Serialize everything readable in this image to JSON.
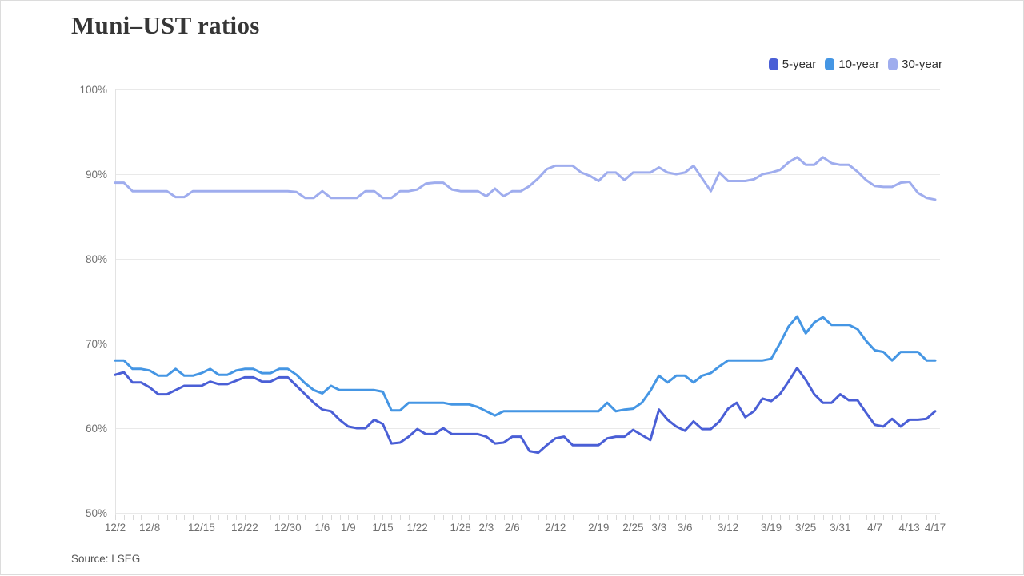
{
  "header": {
    "title": "Muni–UST ratios"
  },
  "footer": {
    "source": "Source: LSEG"
  },
  "colors": {
    "background": "#ffffff",
    "border": "#dcdcdc",
    "grid": "#e9e9e9",
    "axis_line": "#e3e3e3",
    "tick": "#d9d9d9",
    "axis_text": "#6f6f6f",
    "title_text": "#363636",
    "legend_text": "#2f2f2f",
    "source_text": "#565656",
    "series_5yr": "#4a5fd6",
    "series_10yr": "#4596e4",
    "series_30yr": "#9fadee"
  },
  "chart_data": {
    "type": "line",
    "title": "Muni–UST ratios",
    "xlabel": "",
    "ylabel": "",
    "ylim": [
      50,
      100
    ],
    "ytick_values": [
      50,
      60,
      70,
      80,
      90,
      100
    ],
    "ytick_suffix": "%",
    "grid": "horizontal",
    "legend_position": "top-right",
    "x_tick_labels": [
      "12/2",
      "12/8",
      "12/15",
      "12/22",
      "12/30",
      "1/6",
      "1/9",
      "1/15",
      "1/22",
      "1/28",
      "2/3",
      "2/6",
      "2/12",
      "2/19",
      "2/25",
      "3/3",
      "3/6",
      "3/12",
      "3/19",
      "3/25",
      "3/31",
      "4/7",
      "4/13",
      "4/17"
    ],
    "x_tick_indices": [
      0,
      4,
      10,
      15,
      20,
      24,
      27,
      31,
      35,
      40,
      43,
      46,
      51,
      56,
      60,
      63,
      66,
      71,
      76,
      80,
      84,
      88,
      92,
      95
    ],
    "series": [
      {
        "name": "5-year",
        "color": "#4a5fd6",
        "values": [
          66.3,
          66.6,
          65.4,
          65.4,
          64.8,
          64.0,
          64.0,
          64.5,
          65.0,
          65.0,
          65.0,
          65.5,
          65.2,
          65.2,
          65.6,
          66.0,
          66.0,
          65.5,
          65.5,
          66.0,
          66.0,
          65.0,
          64.0,
          63.0,
          62.2,
          62.0,
          61.0,
          60.2,
          60.0,
          60.0,
          61.0,
          60.5,
          58.2,
          58.3,
          59.0,
          59.9,
          59.3,
          59.3,
          60.0,
          59.3,
          59.3,
          59.3,
          59.3,
          59.0,
          58.2,
          58.3,
          59.0,
          59.0,
          57.3,
          57.1,
          58.0,
          58.8,
          59.0,
          58.0,
          58.0,
          58.0,
          58.0,
          58.8,
          59.0,
          59.0,
          59.8,
          59.2,
          58.6,
          62.2,
          61.0,
          60.2,
          59.7,
          60.8,
          59.9,
          59.9,
          60.8,
          62.3,
          63.0,
          61.3,
          62.0,
          63.5,
          63.2,
          64.0,
          65.5,
          67.1,
          65.7,
          64.0,
          63.0,
          63.0,
          64.0,
          63.3,
          63.3,
          61.8,
          60.4,
          60.2,
          61.1,
          60.2,
          61.0,
          61.0,
          61.1,
          62.0
        ]
      },
      {
        "name": "10-year",
        "color": "#4596e4",
        "values": [
          68.0,
          68.0,
          67.0,
          67.0,
          66.8,
          66.2,
          66.2,
          67.0,
          66.2,
          66.2,
          66.5,
          67.0,
          66.3,
          66.3,
          66.8,
          67.0,
          67.0,
          66.5,
          66.5,
          67.0,
          67.0,
          66.3,
          65.3,
          64.5,
          64.1,
          65.0,
          64.5,
          64.5,
          64.5,
          64.5,
          64.5,
          64.3,
          62.1,
          62.1,
          63.0,
          63.0,
          63.0,
          63.0,
          63.0,
          62.8,
          62.8,
          62.8,
          62.5,
          62.0,
          61.5,
          62.0,
          62.0,
          62.0,
          62.0,
          62.0,
          62.0,
          62.0,
          62.0,
          62.0,
          62.0,
          62.0,
          62.0,
          63.0,
          62.0,
          62.2,
          62.3,
          63.0,
          64.4,
          66.2,
          65.4,
          66.2,
          66.2,
          65.4,
          66.2,
          66.5,
          67.3,
          68.0,
          68.0,
          68.0,
          68.0,
          68.0,
          68.2,
          70.0,
          72.0,
          73.2,
          71.2,
          72.5,
          73.1,
          72.2,
          72.2,
          72.2,
          71.7,
          70.3,
          69.2,
          69.0,
          68.0,
          69.0,
          69.0,
          69.0,
          68.0,
          68.0
        ]
      },
      {
        "name": "30-year",
        "color": "#9fadee",
        "values": [
          89.0,
          89.0,
          88.0,
          88.0,
          88.0,
          88.0,
          88.0,
          87.3,
          87.3,
          88.0,
          88.0,
          88.0,
          88.0,
          88.0,
          88.0,
          88.0,
          88.0,
          88.0,
          88.0,
          88.0,
          88.0,
          87.9,
          87.2,
          87.2,
          88.0,
          87.2,
          87.2,
          87.2,
          87.2,
          88.0,
          88.0,
          87.2,
          87.2,
          88.0,
          88.0,
          88.2,
          88.9,
          89.0,
          89.0,
          88.2,
          88.0,
          88.0,
          88.0,
          87.4,
          88.3,
          87.4,
          88.0,
          88.0,
          88.6,
          89.5,
          90.6,
          91.0,
          91.0,
          91.0,
          90.2,
          89.8,
          89.2,
          90.2,
          90.2,
          89.3,
          90.2,
          90.2,
          90.2,
          90.8,
          90.2,
          90.0,
          90.2,
          91.0,
          89.5,
          88.0,
          90.2,
          89.2,
          89.2,
          89.2,
          89.4,
          90.0,
          90.2,
          90.5,
          91.4,
          92.0,
          91.1,
          91.1,
          92.0,
          91.3,
          91.1,
          91.1,
          90.3,
          89.3,
          88.6,
          88.5,
          88.5,
          89.0,
          89.1,
          87.8,
          87.2,
          87.0
        ]
      }
    ]
  }
}
